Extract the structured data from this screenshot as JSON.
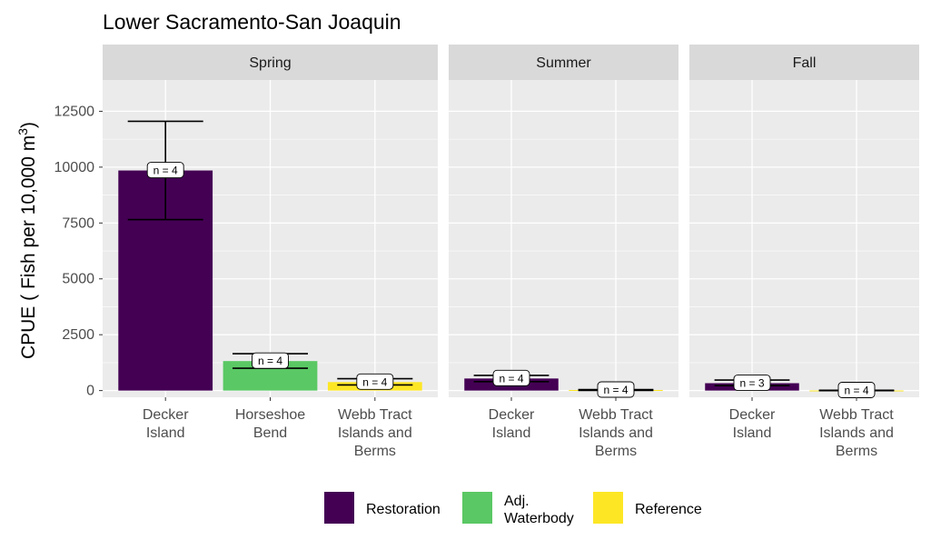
{
  "chart_data": {
    "type": "bar",
    "title": "Lower Sacramento-San Joaquin",
    "ylabel": "CPUE ( Fish per 10,000 m",
    "ylabel_superscript": "3",
    "ylabel_close": ")",
    "ylim": [
      -300,
      13900
    ],
    "yticks": [
      0,
      2500,
      5000,
      7500,
      10000,
      12500
    ],
    "ytick_labels": [
      "0",
      "2500",
      "5000",
      "7500",
      "10000",
      "12500"
    ],
    "grid": true,
    "legend_position": "bottom",
    "legend": [
      {
        "label": "Restoration",
        "color": "#440154"
      },
      {
        "label": "Adj.\nWaterbody",
        "color": "#5AC864"
      },
      {
        "label": "Reference",
        "color": "#FDE725"
      }
    ],
    "panels": [
      {
        "strip": "Spring",
        "bars": [
          {
            "category": "Decker\nIsland",
            "group": "Restoration",
            "value": 9850,
            "err_low": 7650,
            "err_high": 12050,
            "n_label": "n = 4"
          },
          {
            "category": "Horseshoe\nBend",
            "group": "Adj.\nWaterbody",
            "value": 1320,
            "err_low": 1000,
            "err_high": 1650,
            "n_label": "n = 4"
          },
          {
            "category": "Webb Tract\nIslands and\nBerms",
            "group": "Reference",
            "value": 380,
            "err_low": 250,
            "err_high": 530,
            "n_label": "n = 4"
          }
        ]
      },
      {
        "strip": "Summer",
        "bars": [
          {
            "category": "Decker\nIsland",
            "group": "Restoration",
            "value": 540,
            "err_low": 400,
            "err_high": 680,
            "n_label": "n = 4"
          },
          {
            "category": "Webb Tract\nIslands and\nBerms",
            "group": "Reference",
            "value": 25,
            "err_low": 5,
            "err_high": 45,
            "n_label": "n = 4"
          }
        ]
      },
      {
        "strip": "Fall",
        "bars": [
          {
            "category": "Decker\nIsland",
            "group": "Restoration",
            "value": 330,
            "err_low": 220,
            "err_high": 470,
            "n_label": "n = 3"
          },
          {
            "category": "Webb Tract\nIslands and\nBerms",
            "group": "Reference",
            "value": 5,
            "err_low": -5,
            "err_high": 15,
            "n_label": "n = 4"
          }
        ]
      }
    ]
  }
}
